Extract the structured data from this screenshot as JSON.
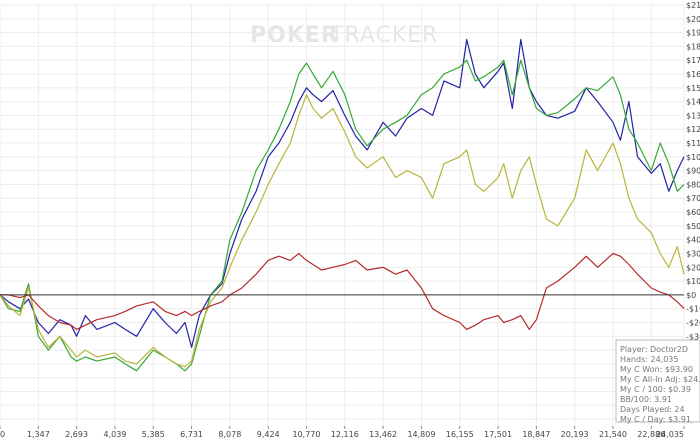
{
  "watermark": {
    "part1": "POKER",
    "part2": "TRACKER"
  },
  "stats": [
    "Player: Doctor2D",
    "Hands: 24,035",
    "My C Won: $93.90",
    "My C All-In Adj: $24.53",
    "My C / 100: $0.39",
    "BB/100: 3.91",
    "Days Played: 24",
    "My C / Day: $3.91"
  ],
  "chart_data": {
    "type": "line",
    "xlim": [
      0,
      24035
    ],
    "ylim": [
      -95,
      210
    ],
    "x_ticks": [
      0,
      1347,
      2693,
      4039,
      5385,
      6731,
      8078,
      9424,
      10770,
      12116,
      13462,
      14809,
      16155,
      17501,
      18847,
      20193,
      21540,
      22886,
      24035
    ],
    "x_tick_labels": [
      "0",
      "1,347",
      "2,693",
      "4,039",
      "5,385",
      "6,731",
      "8,078",
      "9,424",
      "10,770",
      "12,116",
      "13,462",
      "14,809",
      "16,155",
      "17,501",
      "18,847",
      "20,193",
      "21,540",
      "22,886",
      "24,035"
    ],
    "y_ticks": [
      -90,
      -80,
      -70,
      -60,
      -50,
      -40,
      -30,
      -20,
      -10,
      0,
      10,
      20,
      30,
      40,
      50,
      60,
      70,
      80,
      90,
      100,
      110,
      120,
      130,
      140,
      150,
      160,
      170,
      180,
      190,
      200,
      210
    ],
    "y_tick_labels": [
      "-$90",
      "-$80",
      "-$70",
      "-$60",
      "-$50",
      "-$40",
      "-$30",
      "-$20",
      "-$10",
      "$0",
      "$10",
      "$20",
      "$30",
      "$40",
      "$50",
      "$60",
      "$70",
      "$80",
      "$90",
      "$100",
      "$110",
      "$120",
      "$130",
      "$140",
      "$150",
      "$160",
      "$170",
      "$180",
      "$190",
      "$200",
      "$210"
    ],
    "grid": true,
    "series": [
      {
        "color": "#2222aa",
        "x": [
          0,
          300,
          700,
          1000,
          1347,
          1700,
          2100,
          2500,
          2693,
          3000,
          3400,
          4039,
          4400,
          4800,
          5385,
          5800,
          6200,
          6500,
          6731,
          7000,
          7400,
          7800,
          8078,
          8500,
          9000,
          9424,
          9800,
          10200,
          10500,
          10770,
          11000,
          11300,
          11700,
          12116,
          12500,
          12900,
          13462,
          13900,
          14300,
          14809,
          15200,
          15600,
          16155,
          16400,
          16700,
          17000,
          17501,
          17700,
          18000,
          18300,
          18600,
          18847,
          19200,
          19600,
          20193,
          20600,
          21000,
          21540,
          21800,
          22100,
          22400,
          22886,
          23200,
          23500,
          23800,
          24035
        ],
        "y": [
          0,
          -5,
          -10,
          -3,
          -20,
          -28,
          -18,
          -22,
          -30,
          -15,
          -25,
          -20,
          -25,
          -30,
          -10,
          -20,
          -28,
          -20,
          -38,
          -15,
          0,
          8,
          30,
          55,
          75,
          100,
          110,
          125,
          140,
          150,
          145,
          140,
          148,
          130,
          115,
          105,
          125,
          115,
          128,
          135,
          130,
          155,
          150,
          185,
          160,
          150,
          162,
          168,
          135,
          185,
          150,
          140,
          130,
          128,
          133,
          150,
          140,
          125,
          112,
          140,
          100,
          88,
          95,
          75,
          90,
          100
        ]
      },
      {
        "color": "#33aa33",
        "x": [
          0,
          300,
          700,
          1000,
          1347,
          1700,
          2100,
          2500,
          2693,
          3000,
          3400,
          4039,
          4400,
          4800,
          5385,
          5800,
          6200,
          6500,
          6731,
          7000,
          7400,
          7800,
          8078,
          8500,
          9000,
          9424,
          9800,
          10200,
          10500,
          10770,
          11000,
          11300,
          11700,
          12116,
          12500,
          12900,
          13462,
          13900,
          14300,
          14809,
          15200,
          15600,
          16155,
          16400,
          16700,
          17000,
          17501,
          17700,
          18000,
          18300,
          18600,
          18847,
          19200,
          19600,
          20193,
          20600,
          21000,
          21540,
          21800,
          22100,
          22400,
          22886,
          23200,
          23500,
          23800,
          24035
        ],
        "y": [
          0,
          -10,
          -12,
          8,
          -30,
          -40,
          -30,
          -45,
          -48,
          -45,
          -48,
          -45,
          -50,
          -55,
          -40,
          -45,
          -50,
          -55,
          -50,
          -30,
          0,
          10,
          40,
          60,
          90,
          105,
          120,
          140,
          160,
          168,
          160,
          150,
          162,
          145,
          120,
          108,
          120,
          125,
          130,
          145,
          150,
          160,
          165,
          170,
          155,
          158,
          165,
          170,
          145,
          170,
          150,
          135,
          130,
          132,
          142,
          150,
          148,
          158,
          145,
          120,
          110,
          90,
          110,
          95,
          75,
          80
        ]
      },
      {
        "color": "#bbb33a",
        "x": [
          0,
          300,
          700,
          1000,
          1347,
          1700,
          2100,
          2500,
          2693,
          3000,
          3400,
          4039,
          4400,
          4800,
          5385,
          5800,
          6200,
          6500,
          6731,
          7000,
          7400,
          7800,
          8078,
          8500,
          9000,
          9424,
          9800,
          10200,
          10500,
          10770,
          11000,
          11300,
          11700,
          12116,
          12500,
          12900,
          13462,
          13900,
          14300,
          14809,
          15200,
          15600,
          16155,
          16400,
          16700,
          17000,
          17501,
          17700,
          18000,
          18300,
          18600,
          18847,
          19200,
          19600,
          20193,
          20600,
          21000,
          21540,
          21800,
          22100,
          22400,
          22886,
          23200,
          23500,
          23800,
          24035
        ],
        "y": [
          0,
          -8,
          -15,
          5,
          -25,
          -38,
          -30,
          -40,
          -45,
          -40,
          -45,
          -42,
          -48,
          -50,
          -38,
          -45,
          -50,
          -52,
          -48,
          -25,
          -5,
          5,
          20,
          40,
          60,
          80,
          95,
          110,
          130,
          145,
          135,
          128,
          135,
          118,
          100,
          92,
          100,
          85,
          90,
          85,
          70,
          95,
          100,
          105,
          80,
          75,
          85,
          95,
          70,
          90,
          100,
          80,
          55,
          50,
          70,
          105,
          90,
          110,
          95,
          70,
          55,
          45,
          30,
          20,
          35,
          15
        ]
      },
      {
        "color": "#b52a2a",
        "x": [
          0,
          300,
          700,
          1000,
          1347,
          1700,
          2100,
          2500,
          2693,
          3000,
          3400,
          4039,
          4400,
          4800,
          5385,
          5800,
          6200,
          6500,
          6731,
          7000,
          7400,
          7800,
          8078,
          8500,
          9000,
          9424,
          9800,
          10200,
          10500,
          10770,
          11000,
          11300,
          11700,
          12116,
          12500,
          12900,
          13462,
          13900,
          14300,
          14809,
          15200,
          15600,
          16155,
          16400,
          16700,
          17000,
          17501,
          17700,
          18000,
          18300,
          18600,
          18847,
          19200,
          19600,
          20193,
          20600,
          21000,
          21540,
          21800,
          22100,
          22400,
          22886,
          23200,
          23500,
          23800,
          24035
        ],
        "y": [
          0,
          0,
          -2,
          0,
          -8,
          -15,
          -20,
          -22,
          -25,
          -22,
          -18,
          -15,
          -12,
          -8,
          -5,
          -12,
          -15,
          -12,
          -15,
          -12,
          -8,
          -5,
          0,
          5,
          15,
          25,
          28,
          25,
          30,
          25,
          22,
          18,
          20,
          22,
          25,
          18,
          20,
          15,
          18,
          5,
          -10,
          -15,
          -20,
          -25,
          -22,
          -18,
          -15,
          -20,
          -18,
          -15,
          -25,
          -18,
          5,
          10,
          20,
          28,
          20,
          30,
          28,
          22,
          15,
          5,
          2,
          0,
          -5,
          -10
        ]
      }
    ]
  }
}
